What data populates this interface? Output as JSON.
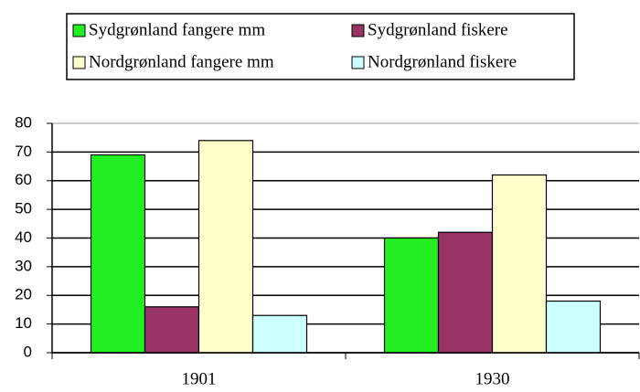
{
  "chart_data": {
    "type": "bar",
    "categories": [
      "1901",
      "1930"
    ],
    "series": [
      {
        "name": "Sydgrønland fangere mm",
        "color": "#22ee22",
        "values": [
          69,
          40
        ]
      },
      {
        "name": "Sydgrønland fiskere",
        "color": "#993366",
        "values": [
          16,
          42
        ]
      },
      {
        "name": "Nordgrønland fangere mm",
        "color": "#ffffcc",
        "values": [
          74,
          62
        ]
      },
      {
        "name": "Nordgrønland fiskere",
        "color": "#ccffff",
        "values": [
          13,
          18
        ]
      }
    ],
    "ylim": [
      0,
      80
    ],
    "yticks": [
      0,
      10,
      20,
      30,
      40,
      50,
      60,
      70,
      80
    ],
    "grid": true,
    "legend": "top"
  }
}
